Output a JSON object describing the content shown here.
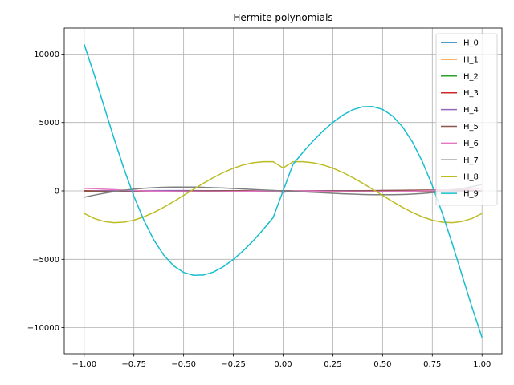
{
  "chart_data": {
    "type": "line",
    "title": "Hermite polynomials",
    "xlabel": "",
    "ylabel": "",
    "xlim": [
      -1.1,
      1.1
    ],
    "ylim": [
      -11900,
      11900
    ],
    "x_ticks": [
      -1.0,
      -0.75,
      -0.5,
      -0.25,
      0.0,
      0.25,
      0.5,
      0.75,
      1.0
    ],
    "x_tick_labels": [
      "−1.00",
      "−0.75",
      "−0.50",
      "−0.25",
      "0.00",
      "0.25",
      "0.50",
      "0.75",
      "1.00"
    ],
    "y_ticks": [
      -10000,
      -5000,
      0,
      5000,
      10000
    ],
    "y_tick_labels": [
      "−10000",
      "−5000",
      "0",
      "5000",
      "10000"
    ],
    "grid": true,
    "legend_position": "top-right",
    "x": [
      -1.0,
      -0.95,
      -0.9,
      -0.85,
      -0.8,
      -0.75,
      -0.7,
      -0.65,
      -0.6,
      -0.55,
      -0.5,
      -0.45,
      -0.4,
      -0.35,
      -0.3,
      -0.25,
      -0.2,
      -0.15,
      -0.1,
      -0.05,
      0.0,
      0.05,
      0.1,
      0.15,
      0.2,
      0.25,
      0.3,
      0.35,
      0.4,
      0.45,
      0.5,
      0.55,
      0.6,
      0.65,
      0.7,
      0.75,
      0.8,
      0.85,
      0.9,
      0.95,
      1.0
    ],
    "series": [
      {
        "name": "H_0",
        "color": "#1f77b4",
        "values": [
          1,
          1,
          1,
          1,
          1,
          1,
          1,
          1,
          1,
          1,
          1,
          1,
          1,
          1,
          1,
          1,
          1,
          1,
          1,
          1,
          1,
          1,
          1,
          1,
          1,
          1,
          1,
          1,
          1,
          1,
          1,
          1,
          1,
          1,
          1,
          1,
          1,
          1,
          1,
          1,
          1
        ]
      },
      {
        "name": "H_1",
        "color": "#ff7f0e",
        "values": [
          -2,
          -1.9,
          -1.8,
          -1.7,
          -1.6,
          -1.5,
          -1.4,
          -1.3,
          -1.2,
          -1.1,
          -1,
          -0.9,
          -0.8,
          -0.7,
          -0.6,
          -0.5,
          -0.4,
          -0.3,
          -0.2,
          -0.1,
          0,
          0.1,
          0.2,
          0.3,
          0.4,
          0.5,
          0.6,
          0.7,
          0.8,
          0.9,
          1,
          1.1,
          1.2,
          1.3,
          1.4,
          1.5,
          1.6,
          1.7,
          1.8,
          1.9,
          2
        ]
      },
      {
        "name": "H_2",
        "color": "#2ca02c",
        "values": [
          2,
          1.61,
          1.24,
          0.89,
          0.56,
          0.25,
          -0.04,
          -0.31,
          -0.56,
          -0.79,
          -1,
          -1.19,
          -1.36,
          -1.51,
          -1.64,
          -1.75,
          -1.84,
          -1.91,
          -1.96,
          -1.99,
          -2,
          -1.99,
          -1.96,
          -1.91,
          -1.84,
          -1.75,
          -1.64,
          -1.51,
          -1.36,
          -1.19,
          -1,
          -0.79,
          -0.56,
          -0.31,
          -0.04,
          0.25,
          0.56,
          0.89,
          1.24,
          1.61,
          2
        ]
      },
      {
        "name": "H_3",
        "color": "#d62728",
        "values": [
          4,
          0.54,
          -2.17,
          -4.28,
          -5.9,
          -7.13,
          -8.06,
          -8.78,
          -9.36,
          -9.87,
          -10,
          -9.99,
          -9.39,
          -8.54,
          -7.46,
          -6.13,
          -4.64,
          -3.57,
          -2.37,
          -1.2,
          0,
          1.2,
          2.37,
          3.57,
          4.64,
          6.13,
          7.46,
          8.54,
          9.39,
          9.99,
          10,
          9.87,
          9.36,
          8.78,
          8.06,
          7.13,
          5.9,
          4.28,
          2.17,
          -0.54,
          -4
        ]
      },
      {
        "name": "H_4",
        "color": "#9467bd",
        "values": [
          -20,
          -9.1,
          -0.6,
          6.2,
          11.3,
          15.1,
          17.9,
          19.7,
          20.6,
          20.7,
          20.0,
          18.6,
          16.6,
          14.1,
          11.1,
          7.9,
          4.5,
          0.8,
          -2.3,
          -4.4,
          12,
          -4.4,
          -2.3,
          0.8,
          4.5,
          7.9,
          11.1,
          14.1,
          16.6,
          18.6,
          20.0,
          20.7,
          20.6,
          19.7,
          17.9,
          15.1,
          11.3,
          6.2,
          -0.6,
          -9.1,
          -20
        ]
      },
      {
        "name": "H_5",
        "color": "#8c564b",
        "values": [
          -8,
          -34.7,
          -51.8,
          -61.6,
          -65.3,
          -64.3,
          -59.8,
          -52.9,
          -44.4,
          -35.2,
          -26.0,
          -17.1,
          -8.9,
          -1.5,
          5.0,
          10.5,
          14.9,
          18.1,
          20.0,
          20.6,
          0,
          -20.6,
          -20.0,
          -18.1,
          -14.9,
          -10.5,
          -5.0,
          1.5,
          8.9,
          17.1,
          26.0,
          35.2,
          44.4,
          52.9,
          59.8,
          64.3,
          65.3,
          61.6,
          51.8,
          34.7,
          8
        ]
      },
      {
        "name": "H_6",
        "color": "#e377c2",
        "values": [
          184,
          159,
          128,
          95,
          61,
          30,
          3,
          -20,
          -37,
          -50,
          -58,
          -62,
          -63,
          -63,
          -59,
          -50,
          -35,
          -15,
          4,
          13,
          -120,
          13,
          4,
          -15,
          -35,
          -50,
          -59,
          -63,
          -63,
          -62,
          -58,
          -50,
          -37,
          -20,
          3,
          30,
          61,
          95,
          128,
          159,
          184
        ]
      },
      {
        "name": "H_7",
        "color": "#7f7f7f",
        "values": [
          -464,
          -312,
          -174,
          -54,
          47,
          129,
          192,
          237,
          266,
          280,
          282,
          275,
          260,
          238,
          210,
          178,
          141,
          102,
          66,
          32,
          0,
          -32,
          -66,
          -102,
          -141,
          -178,
          -210,
          -238,
          -260,
          -275,
          -282,
          -280,
          -266,
          -237,
          -192,
          -129,
          -47,
          54,
          174,
          312,
          464
        ]
      },
      {
        "name": "H_8",
        "color": "#bcbd22",
        "values": [
          -1648,
          -2010,
          -2232,
          -2321,
          -2285,
          -2139,
          -1897,
          -1577,
          -1197,
          -776,
          -332,
          118,
          559,
          974,
          1347,
          1660,
          1900,
          2060,
          2134,
          2130,
          1680,
          2130,
          2134,
          2060,
          1900,
          1660,
          1347,
          974,
          559,
          118,
          -332,
          -776,
          -1197,
          -1577,
          -1897,
          -2139,
          -2285,
          -2321,
          -2232,
          -2010,
          -1648
        ]
      },
      {
        "name": "H_9",
        "color": "#17becf",
        "values": [
          10720,
          8520,
          6180,
          3840,
          1620,
          -390,
          -2140,
          -3580,
          -4690,
          -5480,
          -5960,
          -6170,
          -6150,
          -5930,
          -5540,
          -5010,
          -4370,
          -3640,
          -2830,
          -1950,
          0,
          1950,
          2830,
          3640,
          4370,
          5010,
          5540,
          5930,
          6150,
          6170,
          5960,
          5480,
          4690,
          3580,
          2140,
          390,
          -1620,
          -3840,
          -6180,
          -8520,
          -10720
        ]
      }
    ]
  }
}
